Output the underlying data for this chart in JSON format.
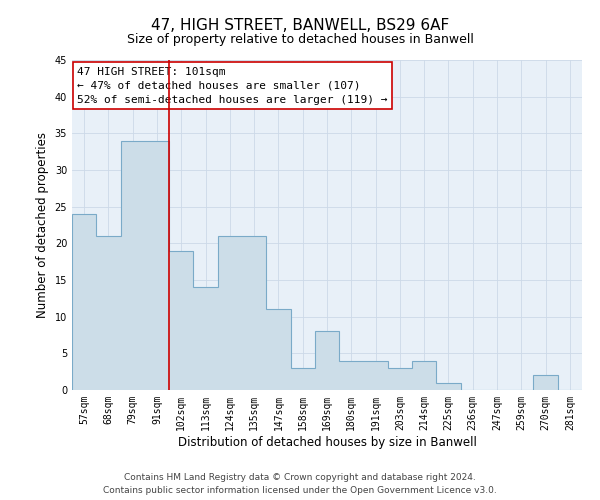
{
  "title": "47, HIGH STREET, BANWELL, BS29 6AF",
  "subtitle": "Size of property relative to detached houses in Banwell",
  "xlabel": "Distribution of detached houses by size in Banwell",
  "ylabel": "Number of detached properties",
  "categories": [
    "57sqm",
    "68sqm",
    "79sqm",
    "91sqm",
    "102sqm",
    "113sqm",
    "124sqm",
    "135sqm",
    "147sqm",
    "158sqm",
    "169sqm",
    "180sqm",
    "191sqm",
    "203sqm",
    "214sqm",
    "225sqm",
    "236sqm",
    "247sqm",
    "259sqm",
    "270sqm",
    "281sqm"
  ],
  "values": [
    24,
    21,
    34,
    34,
    19,
    14,
    21,
    21,
    11,
    3,
    8,
    4,
    4,
    3,
    4,
    1,
    0,
    0,
    0,
    2,
    0
  ],
  "bar_color": "#ccdde8",
  "bar_edge_color": "#7aaac8",
  "ref_line_color": "#cc0000",
  "ref_line_index": 4,
  "annotation_title": "47 HIGH STREET: 101sqm",
  "annotation_line1": "← 47% of detached houses are smaller (107)",
  "annotation_line2": "52% of semi-detached houses are larger (119) →",
  "annotation_box_color": "#ffffff",
  "annotation_box_edge": "#cc0000",
  "ylim": [
    0,
    45
  ],
  "yticks": [
    0,
    5,
    10,
    15,
    20,
    25,
    30,
    35,
    40,
    45
  ],
  "footer_line1": "Contains HM Land Registry data © Crown copyright and database right 2024.",
  "footer_line2": "Contains public sector information licensed under the Open Government Licence v3.0.",
  "bg_color": "#ffffff",
  "grid_color": "#ccd9e8",
  "title_fontsize": 11,
  "subtitle_fontsize": 9,
  "axis_label_fontsize": 8.5,
  "tick_fontsize": 7,
  "annotation_fontsize": 8,
  "footer_fontsize": 6.5
}
